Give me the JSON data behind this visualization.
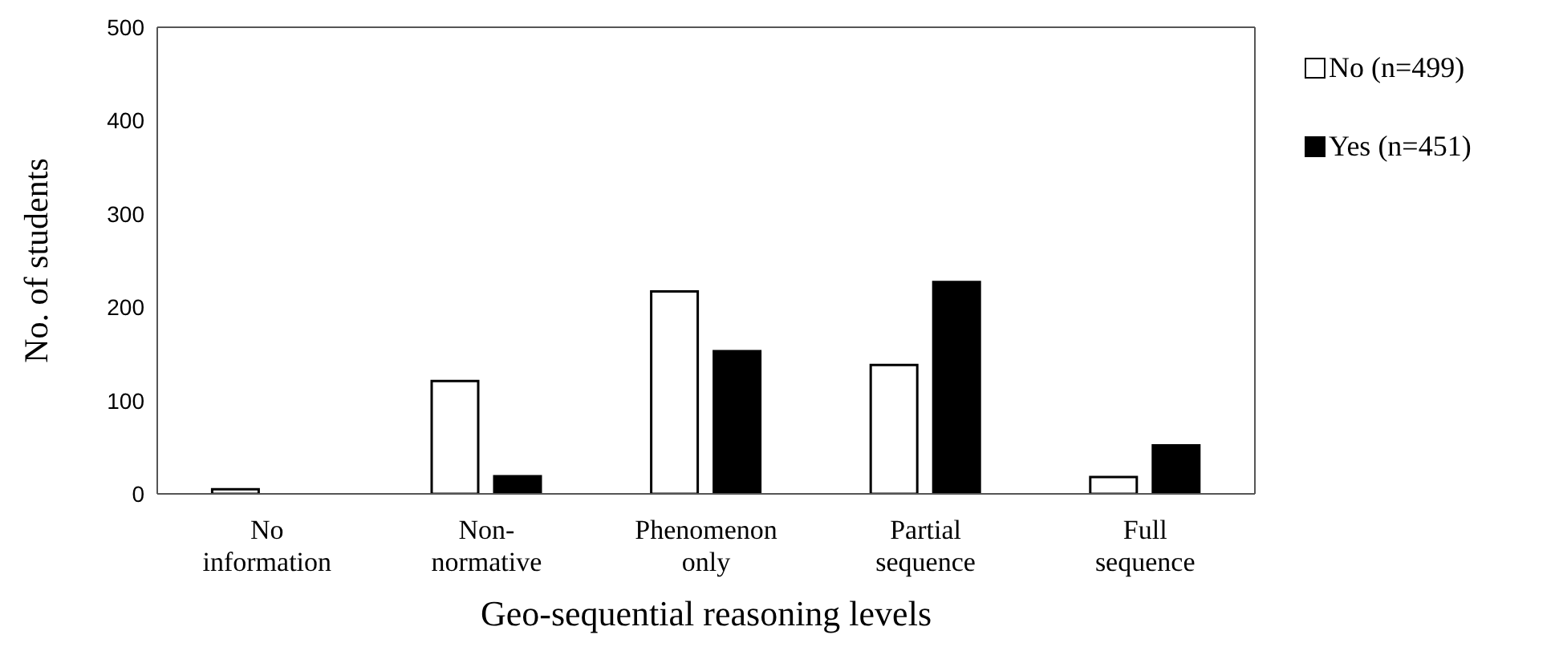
{
  "chart_data": {
    "type": "bar",
    "xlabel": "Geo-sequential reasoning levels",
    "ylabel": "No. of students",
    "categories": [
      "No information",
      "Non-normative",
      "Phenomenon only",
      "Partial sequence",
      "Full sequence"
    ],
    "series": [
      {
        "name": "No (n=499)",
        "color": "#ffffff",
        "values": [
          5,
          121,
          217,
          138,
          18
        ]
      },
      {
        "name": "Yes (n=451)",
        "color": "#000000",
        "values": [
          0,
          19,
          153,
          227,
          52
        ]
      }
    ],
    "ylim": [
      0,
      500
    ],
    "yticks": [
      0,
      100,
      200,
      300,
      400,
      500
    ],
    "legend": "right"
  }
}
